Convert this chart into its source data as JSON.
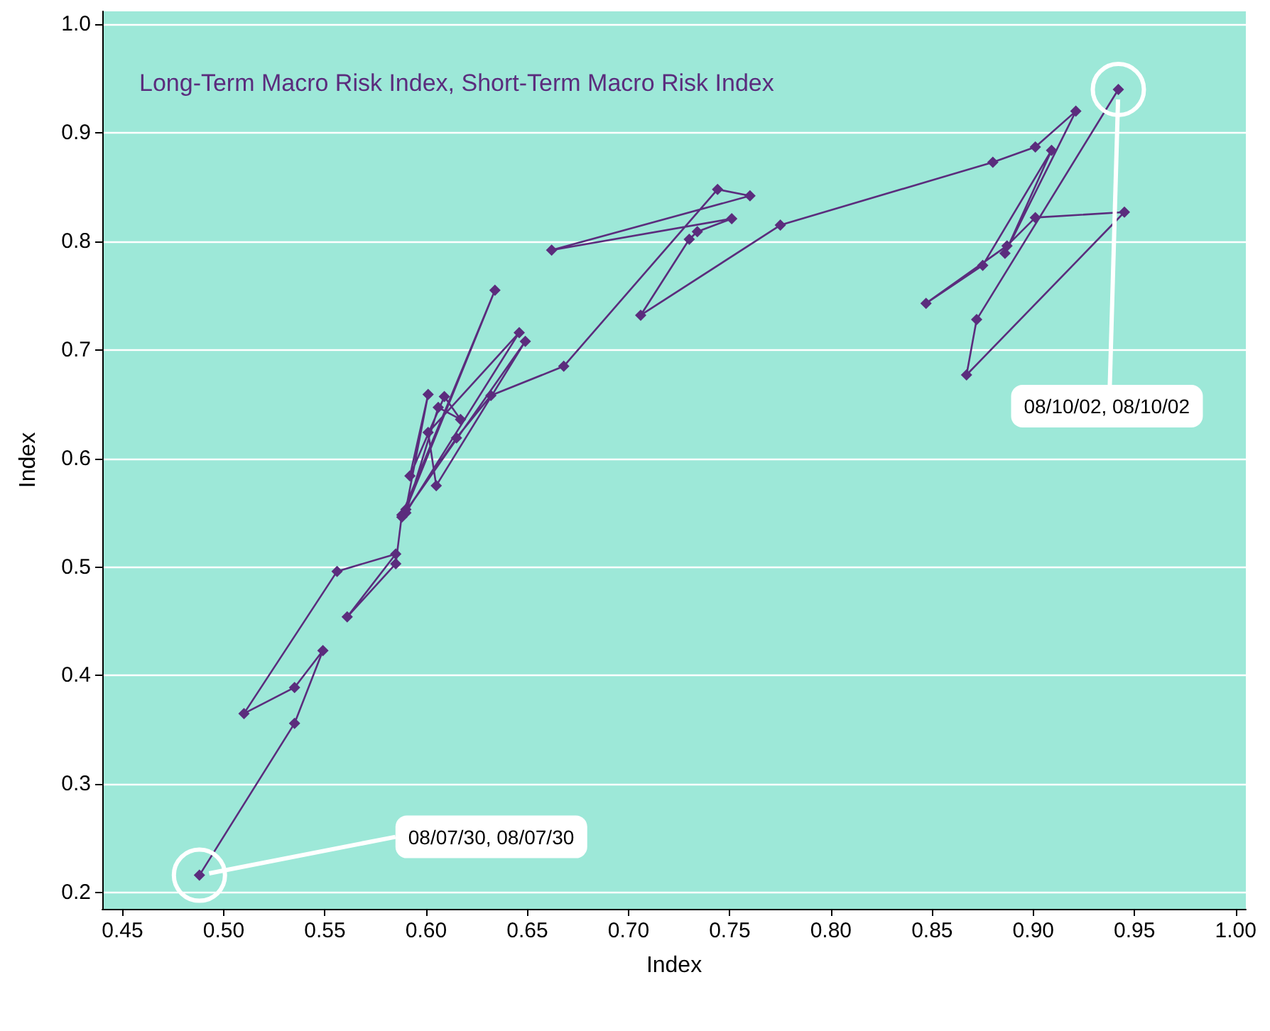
{
  "chart_data": {
    "type": "line",
    "title": "Long-Term Macro Risk Index, Short-Term Macro Risk Index",
    "xlabel": "Index",
    "ylabel": "Index",
    "series": [
      {
        "color": "#5b2c7d",
        "x": [
          0.488,
          0.535,
          0.549,
          0.535,
          0.51,
          0.556,
          0.585,
          0.561,
          0.585,
          0.588,
          0.634,
          0.59,
          0.601,
          0.592,
          0.609,
          0.617,
          0.606,
          0.59,
          0.646,
          0.601,
          0.605,
          0.649,
          0.588,
          0.615,
          0.632,
          0.668,
          0.744,
          0.76,
          0.662,
          0.751,
          0.734,
          0.73,
          0.706,
          0.775,
          0.88,
          0.901,
          0.921,
          0.886,
          0.909,
          0.875,
          0.847,
          0.887,
          0.901,
          0.945,
          0.867,
          0.872,
          0.942
        ],
        "values": [
          0.216,
          0.356,
          0.423,
          0.389,
          0.365,
          0.496,
          0.512,
          0.454,
          0.503,
          0.548,
          0.755,
          0.553,
          0.659,
          0.584,
          0.657,
          0.636,
          0.647,
          0.55,
          0.716,
          0.624,
          0.575,
          0.708,
          0.546,
          0.619,
          0.658,
          0.685,
          0.848,
          0.842,
          0.792,
          0.821,
          0.809,
          0.802,
          0.732,
          0.815,
          0.873,
          0.887,
          0.92,
          0.789,
          0.884,
          0.778,
          0.743,
          0.796,
          0.822,
          0.827,
          0.677,
          0.728,
          0.94
        ]
      }
    ],
    "annotations": [
      {
        "text": "08/07/30, 08/07/30",
        "x": 0.488,
        "y": 0.216
      },
      {
        "text": "08/10/02, 08/10/02",
        "x": 0.942,
        "y": 0.94
      }
    ],
    "xlim": [
      0.44,
      1.005
    ],
    "ylim": [
      0.185,
      1.012
    ],
    "xticks": [
      0.45,
      {
        "value": 0.5,
        "label": "0.50"
      },
      0.55,
      {
        "value": 0.6,
        "label": "0.60"
      },
      0.65,
      {
        "value": 0.7,
        "label": "0.70"
      },
      0.75,
      {
        "value": 0.8,
        "label": "0.80"
      },
      0.85,
      {
        "value": 0.9,
        "label": "0.90"
      },
      0.95,
      {
        "value": 1,
        "label": "1.00"
      }
    ],
    "yticks": [
      0.2,
      0.3,
      0.4,
      0.5,
      0.6,
      0.7,
      0.8,
      0.9,
      {
        "value": 1,
        "label": "1.0"
      }
    ],
    "grid": "y",
    "marker": "diamond",
    "line_style": "solid"
  }
}
